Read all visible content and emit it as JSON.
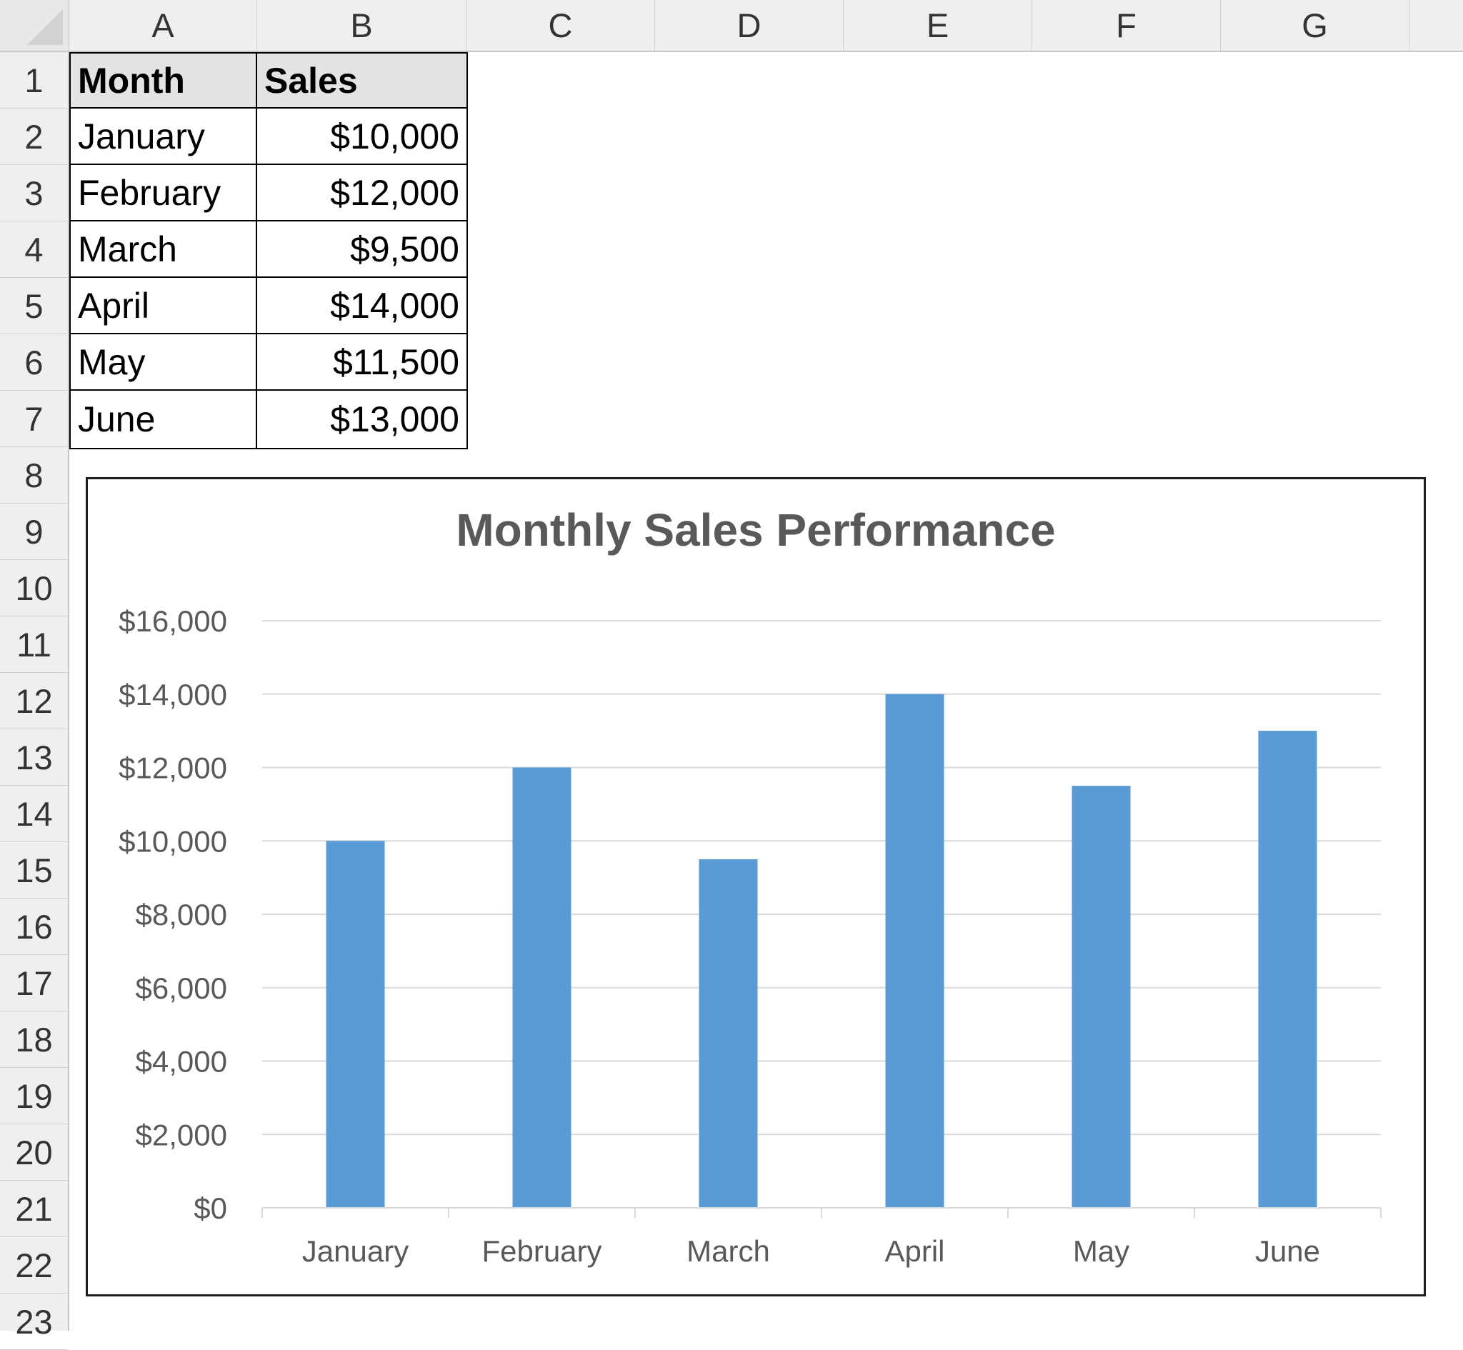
{
  "spreadsheet": {
    "columns": [
      "A",
      "B",
      "C",
      "D",
      "E",
      "F",
      "G"
    ],
    "rows": [
      "1",
      "2",
      "3",
      "4",
      "5",
      "6",
      "7",
      "8",
      "9",
      "10",
      "11",
      "12",
      "13",
      "14",
      "15",
      "16",
      "17",
      "18",
      "19",
      "20",
      "21",
      "22",
      "23"
    ],
    "table": {
      "headers": [
        "Month",
        "Sales"
      ],
      "cells": [
        [
          "January",
          "$10,000"
        ],
        [
          "February",
          "$12,000"
        ],
        [
          "March",
          "$9,500"
        ],
        [
          "April",
          "$14,000"
        ],
        [
          "May",
          "$11,500"
        ],
        [
          "June",
          "$13,000"
        ]
      ]
    }
  },
  "chart_data": {
    "type": "bar",
    "title": "Monthly Sales Performance",
    "xlabel": "",
    "ylabel": "",
    "categories": [
      "January",
      "February",
      "March",
      "April",
      "May",
      "June"
    ],
    "values": [
      10000,
      12000,
      9500,
      14000,
      11500,
      13000
    ],
    "ylim": [
      0,
      16000
    ],
    "yticks": [
      0,
      2000,
      4000,
      6000,
      8000,
      10000,
      12000,
      14000,
      16000
    ],
    "ytick_labels": [
      "$0",
      "$2,000",
      "$4,000",
      "$6,000",
      "$8,000",
      "$10,000",
      "$12,000",
      "$14,000",
      "$16,000"
    ],
    "grid": true,
    "legend": "none",
    "bar_color": "#5b9bd5",
    "gridline_color": "#d9d9d9",
    "text_color": "#595959"
  }
}
